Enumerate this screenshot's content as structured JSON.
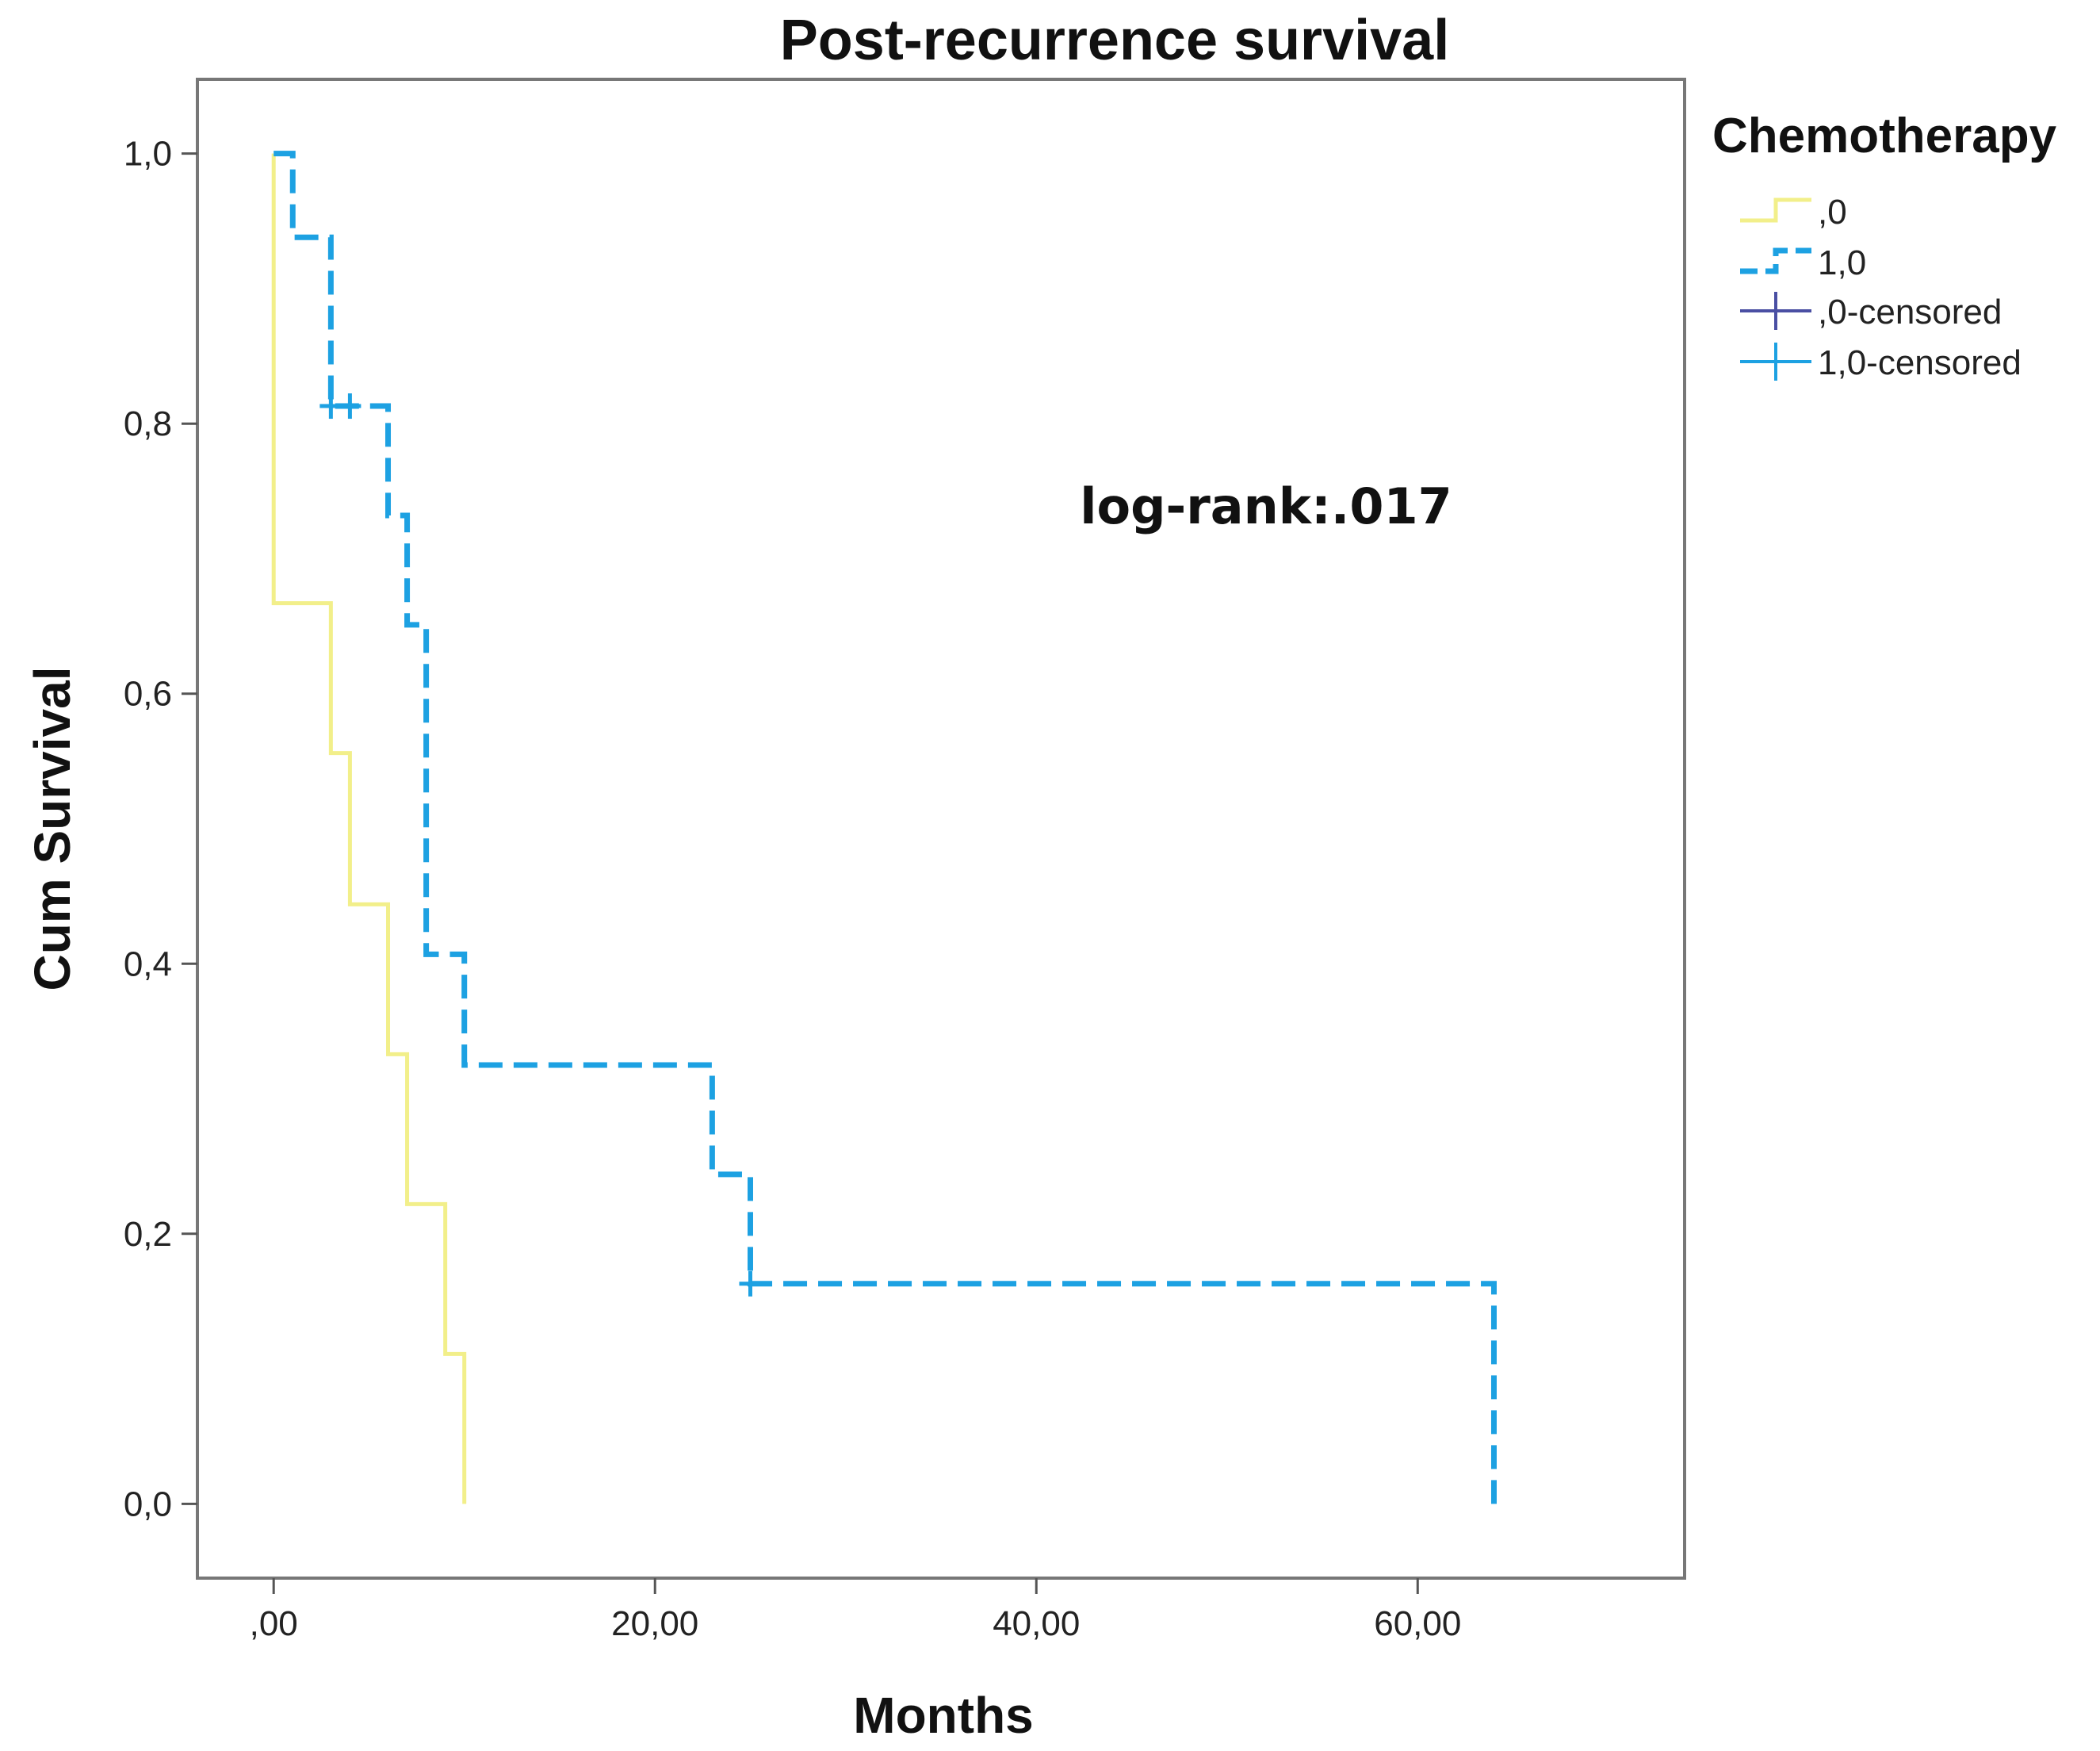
{
  "chart_data": {
    "type": "line",
    "subtype": "kaplan-meier",
    "title": "Post-recurrence survival",
    "xlabel": "Months",
    "ylabel": "Cum Survival",
    "xlim": [
      -4,
      74
    ],
    "ylim": [
      -0.055,
      1.055
    ],
    "x_ticks": [
      0,
      20,
      40,
      60
    ],
    "x_tick_labels": [
      ",00",
      "20,00",
      "40,00",
      "60,00"
    ],
    "y_ticks": [
      0,
      0.2,
      0.4,
      0.6,
      0.8,
      1.0
    ],
    "y_tick_labels": [
      "0,0",
      "0,2",
      "0,4",
      "0,6",
      "0,8",
      "1,0"
    ],
    "grid": false,
    "legend_position": "outside-top-right",
    "legend_title": "Chemotherapy",
    "legend_entries": [
      ",0",
      "1,0",
      ",0-censored",
      "1,0-censored"
    ],
    "annotation": "log-rank:.017",
    "series": [
      {
        "name": ",0",
        "color": "#f2ef8a",
        "style": "solid",
        "steps": [
          {
            "x": 0,
            "y": 1.0
          },
          {
            "x": 0,
            "y": 0.667
          },
          {
            "x": 3,
            "y": 0.556
          },
          {
            "x": 4,
            "y": 0.444
          },
          {
            "x": 6,
            "y": 0.333
          },
          {
            "x": 7,
            "y": 0.222
          },
          {
            "x": 9,
            "y": 0.111
          },
          {
            "x": 10,
            "y": 0.0
          }
        ],
        "censored": []
      },
      {
        "name": "1,0",
        "color": "#1da1e2",
        "style": "dashed",
        "steps": [
          {
            "x": 0,
            "y": 1.0
          },
          {
            "x": 1,
            "y": 0.938
          },
          {
            "x": 3,
            "y": 0.813
          },
          {
            "x": 6,
            "y": 0.732
          },
          {
            "x": 7,
            "y": 0.651
          },
          {
            "x": 8,
            "y": 0.407
          },
          {
            "x": 10,
            "y": 0.325
          },
          {
            "x": 23,
            "y": 0.244
          },
          {
            "x": 25,
            "y": 0.163
          },
          {
            "x": 64,
            "y": 0.0
          }
        ],
        "censored": [
          {
            "x": 3,
            "y": 0.813
          },
          {
            "x": 4,
            "y": 0.813
          },
          {
            "x": 25,
            "y": 0.163
          }
        ]
      }
    ],
    "censor_colors": {
      ",0-censored": "#4a4fa3",
      "1,0-censored": "#1da1e2"
    }
  }
}
